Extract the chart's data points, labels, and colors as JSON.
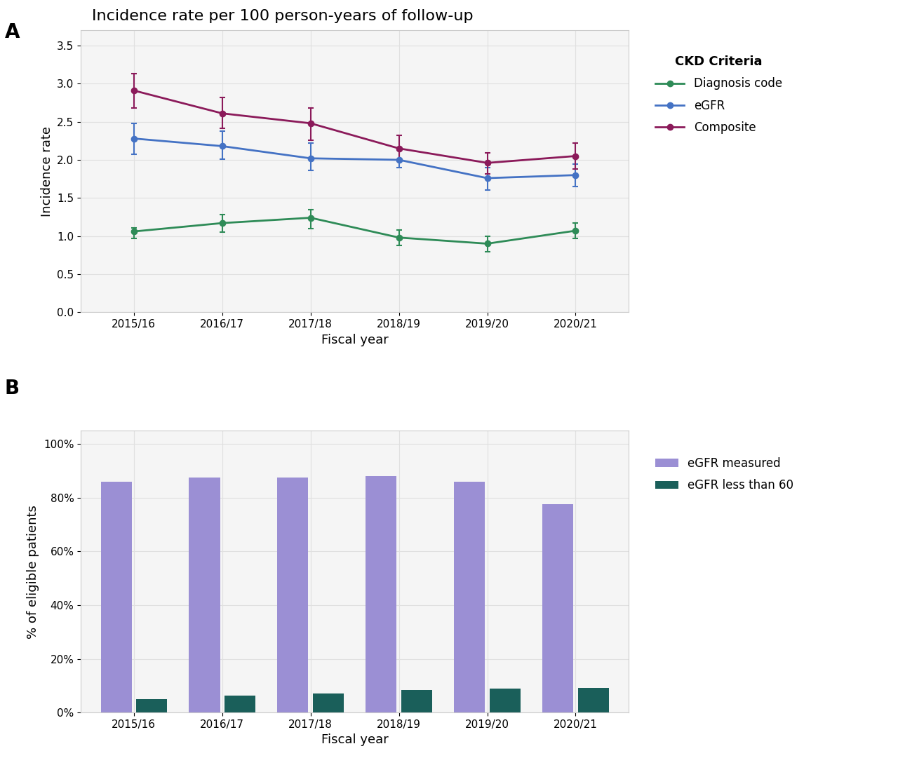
{
  "fiscal_years": [
    "2015/16",
    "2016/17",
    "2017/18",
    "2018/19",
    "2019/20",
    "2020/21"
  ],
  "x_positions": [
    0,
    1,
    2,
    3,
    4,
    5
  ],
  "diagnosis_y": [
    1.06,
    1.17,
    1.24,
    0.98,
    0.9,
    1.07
  ],
  "diagnosis_ylo": [
    0.97,
    1.05,
    1.1,
    0.88,
    0.79,
    0.97
  ],
  "diagnosis_yhi": [
    1.11,
    1.28,
    1.35,
    1.08,
    1.0,
    1.17
  ],
  "egfr_y": [
    2.28,
    2.18,
    2.02,
    2.0,
    1.76,
    1.8
  ],
  "egfr_ylo": [
    2.07,
    2.01,
    1.86,
    1.9,
    1.6,
    1.65
  ],
  "egfr_yhi": [
    2.48,
    2.38,
    2.22,
    2.13,
    1.9,
    1.94
  ],
  "composite_y": [
    2.91,
    2.61,
    2.48,
    2.15,
    1.96,
    2.05
  ],
  "composite_ylo": [
    2.68,
    2.41,
    2.26,
    1.98,
    1.82,
    1.88
  ],
  "composite_yhi": [
    3.13,
    2.82,
    2.68,
    2.32,
    2.09,
    2.22
  ],
  "color_diagnosis": "#2e8b57",
  "color_egfr": "#4472c4",
  "color_composite": "#8b1a5a",
  "bar_egfr_measured": [
    86.0,
    87.5,
    87.5,
    88.0,
    86.0,
    77.5
  ],
  "bar_egfr_lt60": [
    5.0,
    6.2,
    7.2,
    8.3,
    8.8,
    9.1
  ],
  "color_bar_measured": "#9b8fd4",
  "color_bar_lt60": "#1a5f5a",
  "panel_a_title": "Incidence rate per 100 person-years of follow-up",
  "panel_a_ylabel": "Incidence rate",
  "panel_a_xlabel": "Fiscal year",
  "panel_a_ylim": [
    0.0,
    3.7
  ],
  "panel_a_yticks": [
    0.0,
    0.5,
    1.0,
    1.5,
    2.0,
    2.5,
    3.0,
    3.5
  ],
  "panel_b_ylabel": "% of eligible patients",
  "panel_b_xlabel": "Fiscal year",
  "panel_b_ylim": [
    0,
    105
  ],
  "panel_b_yticks": [
    0,
    20,
    40,
    60,
    80,
    100
  ],
  "panel_b_ytick_labels": [
    "0%",
    "20%",
    "40%",
    "60%",
    "80%",
    "100%"
  ],
  "legend_a_title": "CKD Criteria",
  "legend_b_label1": "eGFR measured",
  "legend_b_label2": "eGFR less than 60",
  "background_color": "#ffffff",
  "panel_bg_color": "#f5f5f5",
  "grid_color": "#e0e0e0",
  "panel_label_fontsize": 20,
  "title_fontsize": 16,
  "axis_label_fontsize": 13,
  "tick_fontsize": 11,
  "legend_fontsize": 12,
  "legend_title_fontsize": 13
}
